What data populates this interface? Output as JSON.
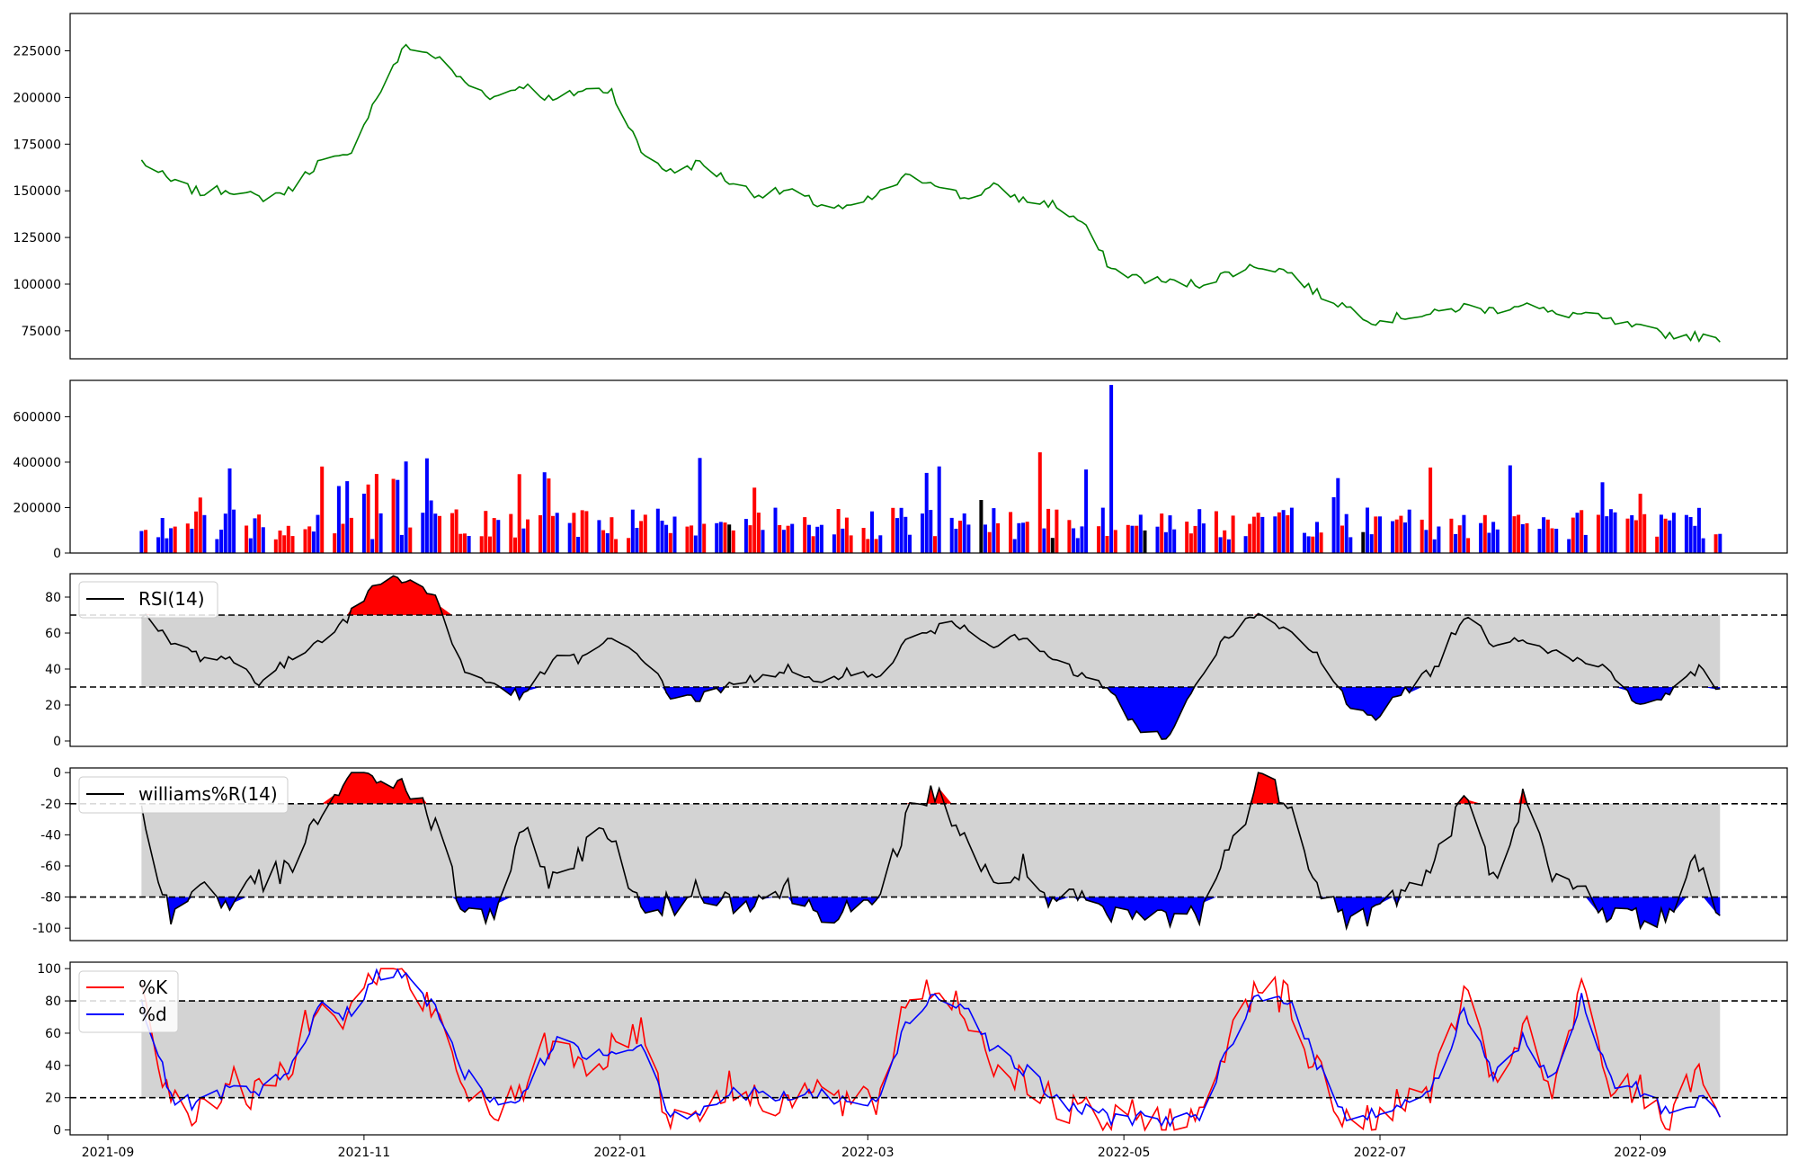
{
  "chart_data": [
    {
      "type": "line",
      "name": "price",
      "x_dates": [
        "2021-09-09",
        "2021-09-16",
        "2021-09-23",
        "2021-09-30",
        "2021-10-07",
        "2021-10-14",
        "2021-10-21",
        "2021-10-28",
        "2021-11-04",
        "2021-11-11",
        "2021-11-18",
        "2021-11-25",
        "2021-12-02",
        "2021-12-09",
        "2021-12-16",
        "2021-12-23",
        "2021-12-30",
        "2022-01-06",
        "2022-01-13",
        "2022-01-20",
        "2022-01-27",
        "2022-02-03",
        "2022-02-10",
        "2022-02-17",
        "2022-02-24",
        "2022-03-03",
        "2022-03-10",
        "2022-03-17",
        "2022-03-24",
        "2022-03-31",
        "2022-04-07",
        "2022-04-14",
        "2022-04-21",
        "2022-04-28",
        "2022-05-05",
        "2022-05-12",
        "2022-05-19",
        "2022-05-26",
        "2022-06-02",
        "2022-06-09",
        "2022-06-16",
        "2022-06-23",
        "2022-06-30",
        "2022-07-07",
        "2022-07-14",
        "2022-07-21",
        "2022-07-28",
        "2022-08-04",
        "2022-08-11",
        "2022-08-18",
        "2022-08-25",
        "2022-09-01",
        "2022-09-08",
        "2022-09-15",
        "2022-09-20"
      ],
      "values": [
        166000,
        155000,
        149000,
        151000,
        146000,
        150000,
        165000,
        168000,
        200000,
        228000,
        222000,
        208000,
        200000,
        207000,
        198000,
        204000,
        204000,
        171000,
        160000,
        165000,
        155000,
        148000,
        150000,
        143000,
        140000,
        147000,
        157000,
        155000,
        146000,
        152000,
        145000,
        143000,
        133000,
        108000,
        103000,
        101000,
        100000,
        106000,
        110000,
        107000,
        95000,
        88000,
        80000,
        83000,
        84000,
        88000,
        86000,
        90000,
        84000,
        84000,
        80000,
        76000,
        73000,
        72000,
        69000
      ],
      "yticks": [
        "75000",
        "100000",
        "125000",
        "150000",
        "175000",
        "200000",
        "225000"
      ],
      "ylim": [
        60000,
        245000
      ],
      "color": "#008000"
    },
    {
      "type": "bar",
      "name": "volume",
      "yticks": [
        "0",
        "200000",
        "400000",
        "600000"
      ],
      "ylim": [
        0,
        760000
      ],
      "colors": {
        "up": "#ff0000",
        "down": "#0000ff",
        "flat": "#000000"
      },
      "peak": {
        "date": "2022-04-28",
        "value": 740000
      }
    },
    {
      "type": "area",
      "name": "RSI",
      "legend": "RSI(14)",
      "x_dates": [
        "2021-09-09",
        "2021-09-16",
        "2021-09-23",
        "2021-09-30",
        "2021-10-07",
        "2021-10-14",
        "2021-10-21",
        "2021-10-28",
        "2021-11-04",
        "2021-11-11",
        "2021-11-18",
        "2021-11-25",
        "2021-12-02",
        "2021-12-09",
        "2021-12-16",
        "2021-12-23",
        "2021-12-30",
        "2022-01-06",
        "2022-01-13",
        "2022-01-20",
        "2022-01-27",
        "2022-02-03",
        "2022-02-10",
        "2022-02-17",
        "2022-02-24",
        "2022-03-03",
        "2022-03-10",
        "2022-03-17",
        "2022-03-24",
        "2022-03-31",
        "2022-04-07",
        "2022-04-14",
        "2022-04-21",
        "2022-04-28",
        "2022-05-05",
        "2022-05-12",
        "2022-05-19",
        "2022-05-26",
        "2022-06-02",
        "2022-06-09",
        "2022-06-16",
        "2022-06-23",
        "2022-06-30",
        "2022-07-07",
        "2022-07-14",
        "2022-07-21",
        "2022-07-28",
        "2022-08-04",
        "2022-08-11",
        "2022-08-18",
        "2022-08-25",
        "2022-09-01",
        "2022-09-08",
        "2022-09-15",
        "2022-09-20"
      ],
      "values": [
        70,
        55,
        47,
        46,
        33,
        44,
        56,
        68,
        88,
        91,
        80,
        38,
        32,
        24,
        45,
        46,
        56,
        48,
        25,
        24,
        30,
        36,
        40,
        30,
        40,
        34,
        55,
        62,
        65,
        54,
        57,
        45,
        36,
        28,
        3,
        3,
        36,
        60,
        70,
        60,
        48,
        22,
        14,
        28,
        40,
        70,
        55,
        58,
        50,
        44,
        40,
        18,
        27,
        40,
        29
      ],
      "yticks": [
        "0",
        "20",
        "40",
        "60",
        "80"
      ],
      "ylim": [
        -3,
        93
      ],
      "thresholds": [
        30,
        70
      ],
      "colors": {
        "line": "#000000",
        "band": "#d3d3d3",
        "over": "#ff0000",
        "under": "#0000ff"
      }
    },
    {
      "type": "area",
      "name": "williams",
      "legend": "williams%R(14)",
      "x_dates": [
        "2021-09-09",
        "2021-09-16",
        "2021-09-23",
        "2021-09-30",
        "2021-10-07",
        "2021-10-14",
        "2021-10-21",
        "2021-10-28",
        "2021-11-04",
        "2021-11-11",
        "2021-11-18",
        "2021-11-25",
        "2021-12-02",
        "2021-12-09",
        "2021-12-16",
        "2021-12-23",
        "2021-12-30",
        "2022-01-06",
        "2022-01-13",
        "2022-01-20",
        "2022-01-27",
        "2022-02-03",
        "2022-02-10",
        "2022-02-17",
        "2022-02-24",
        "2022-03-03",
        "2022-03-10",
        "2022-03-17",
        "2022-03-24",
        "2022-03-31",
        "2022-04-07",
        "2022-04-14",
        "2022-04-21",
        "2022-04-28",
        "2022-05-05",
        "2022-05-12",
        "2022-05-19",
        "2022-05-26",
        "2022-06-02",
        "2022-06-09",
        "2022-06-16",
        "2022-06-23",
        "2022-06-30",
        "2022-07-07",
        "2022-07-14",
        "2022-07-21",
        "2022-07-28",
        "2022-08-04",
        "2022-08-11",
        "2022-08-18",
        "2022-08-25",
        "2022-09-01",
        "2022-09-08",
        "2022-09-15",
        "2022-09-20"
      ],
      "values": [
        -22,
        -95,
        -70,
        -85,
        -68,
        -65,
        -30,
        -5,
        -2,
        -8,
        -35,
        -92,
        -90,
        -40,
        -70,
        -50,
        -36,
        -92,
        -85,
        -74,
        -82,
        -80,
        -75,
        -90,
        -86,
        -90,
        -30,
        -12,
        -40,
        -75,
        -60,
        -88,
        -80,
        -95,
        -92,
        -93,
        -90,
        -50,
        -5,
        -15,
        -70,
        -95,
        -90,
        -75,
        -60,
        -14,
        -70,
        -15,
        -70,
        -75,
        -90,
        -95,
        -90,
        -55,
        -92
      ],
      "yticks": [
        "-100",
        "-80",
        "-60",
        "-40",
        "-20",
        "0"
      ],
      "ylim": [
        -108,
        3
      ],
      "thresholds": [
        -80,
        -20
      ],
      "colors": {
        "line": "#000000",
        "band": "#d3d3d3",
        "over": "#ff0000",
        "under": "#0000ff"
      }
    },
    {
      "type": "line",
      "name": "stochastic",
      "series": [
        {
          "name": "%K",
          "color": "#ff0000",
          "values": [
            88,
            15,
            12,
            30,
            20,
            40,
            85,
            70,
            98,
            95,
            70,
            25,
            15,
            20,
            60,
            40,
            50,
            65,
            5,
            15,
            25,
            20,
            20,
            25,
            15,
            15,
            80,
            90,
            75,
            40,
            35,
            15,
            10,
            5,
            8,
            5,
            5,
            60,
            95,
            80,
            35,
            5,
            10,
            15,
            30,
            85,
            25,
            65,
            20,
            85,
            25,
            25,
            5,
            45,
            8
          ]
        },
        {
          "name": "%d",
          "color": "#0000ff",
          "values": [
            80,
            20,
            15,
            25,
            22,
            35,
            75,
            72,
            95,
            95,
            75,
            35,
            18,
            20,
            55,
            48,
            48,
            55,
            10,
            12,
            22,
            22,
            20,
            22,
            18,
            15,
            65,
            85,
            78,
            50,
            38,
            20,
            12,
            8,
            8,
            6,
            6,
            50,
            85,
            82,
            40,
            10,
            10,
            15,
            28,
            75,
            35,
            55,
            30,
            80,
            30,
            25,
            10,
            20,
            8
          ]
        }
      ],
      "x_dates": [
        "2021-09-09",
        "2021-09-16",
        "2021-09-23",
        "2021-09-30",
        "2021-10-07",
        "2021-10-14",
        "2021-10-21",
        "2021-10-28",
        "2021-11-04",
        "2021-11-11",
        "2021-11-18",
        "2021-11-25",
        "2021-12-02",
        "2021-12-09",
        "2021-12-16",
        "2021-12-23",
        "2021-12-30",
        "2022-01-06",
        "2022-01-13",
        "2022-01-20",
        "2022-01-27",
        "2022-02-03",
        "2022-02-10",
        "2022-02-17",
        "2022-02-24",
        "2022-03-03",
        "2022-03-10",
        "2022-03-17",
        "2022-03-24",
        "2022-03-31",
        "2022-04-07",
        "2022-04-14",
        "2022-04-21",
        "2022-04-28",
        "2022-05-05",
        "2022-05-12",
        "2022-05-19",
        "2022-05-26",
        "2022-06-02",
        "2022-06-09",
        "2022-06-16",
        "2022-06-23",
        "2022-06-30",
        "2022-07-07",
        "2022-07-14",
        "2022-07-21",
        "2022-07-28",
        "2022-08-04",
        "2022-08-11",
        "2022-08-18",
        "2022-08-25",
        "2022-09-01",
        "2022-09-08",
        "2022-09-15",
        "2022-09-20"
      ],
      "yticks": [
        "0",
        "20",
        "40",
        "60",
        "80",
        "100"
      ],
      "ylim": [
        -3,
        104
      ],
      "thresholds": [
        20,
        80
      ],
      "band_color": "#d3d3d3"
    }
  ],
  "x_axis": {
    "ticks": [
      {
        "date": "2021-09-01",
        "label": "2021-09"
      },
      {
        "date": "2021-11-01",
        "label": "2021-11"
      },
      {
        "date": "2022-01-01",
        "label": "2022-01"
      },
      {
        "date": "2022-03-01",
        "label": "2022-03"
      },
      {
        "date": "2022-05-01",
        "label": "2022-05"
      },
      {
        "date": "2022-07-01",
        "label": "2022-07"
      },
      {
        "date": "2022-09-01",
        "label": "2022-09"
      }
    ],
    "xlim": [
      "2021-08-23",
      "2022-10-06"
    ]
  }
}
